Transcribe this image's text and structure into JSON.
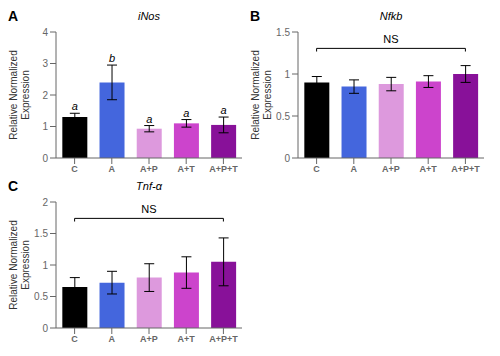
{
  "chart_data": [
    {
      "type": "bar",
      "title": "iNos",
      "categories": [
        "C",
        "A",
        "A+P",
        "A+T",
        "A+P+T"
      ],
      "values": [
        1.3,
        2.4,
        0.93,
        1.1,
        1.05
      ],
      "errors": [
        0.12,
        0.55,
        0.1,
        0.12,
        0.25
      ],
      "colors": [
        "#000000",
        "#4466dd",
        "#dd99dd",
        "#cc44cc",
        "#881199"
      ],
      "ylim": [
        0,
        4
      ],
      "yticks": [
        0,
        1,
        2,
        3,
        4
      ],
      "ylabel": "Relative Normalized\nExpression",
      "annotations": [
        {
          "text": "A"
        },
        {
          "text": "a",
          "category": "C"
        },
        {
          "text": "b",
          "category": "A"
        },
        {
          "text": "a",
          "category": "A+P"
        },
        {
          "text": "a",
          "category": "A+T"
        },
        {
          "text": "a",
          "category": "A+P+T"
        }
      ]
    },
    {
      "type": "bar",
      "title": "Nfkb",
      "categories": [
        "C",
        "A",
        "A+P",
        "A+T",
        "A+P+T"
      ],
      "values": [
        0.9,
        0.85,
        0.88,
        0.91,
        1.0
      ],
      "errors": [
        0.07,
        0.08,
        0.08,
        0.07,
        0.1
      ],
      "colors": [
        "#000000",
        "#4466dd",
        "#dd99dd",
        "#cc44cc",
        "#881199"
      ],
      "ylim": [
        0,
        1.5
      ],
      "yticks": [
        0,
        0.5,
        1,
        1.5
      ],
      "ylabel": "Relative Normalized\nExpression",
      "annotations": [
        {
          "text": "B"
        },
        {
          "text": "NS",
          "from": "C",
          "to": "A+P+T"
        }
      ]
    },
    {
      "type": "bar",
      "title": "Tnf-α",
      "categories": [
        "C",
        "A",
        "A+P",
        "A+T",
        "A+P+T"
      ],
      "values": [
        0.65,
        0.72,
        0.8,
        0.88,
        1.05
      ],
      "errors": [
        0.15,
        0.18,
        0.22,
        0.25,
        0.38
      ],
      "colors": [
        "#000000",
        "#4466dd",
        "#dd99dd",
        "#cc44cc",
        "#881199"
      ],
      "ylim": [
        0,
        2.0
      ],
      "yticks": [
        0,
        0.5,
        1,
        1.5,
        2
      ],
      "ylabel": "Relative Normalized\nExpression",
      "annotations": [
        {
          "text": "C"
        },
        {
          "text": "NS",
          "from": "C",
          "to": "A+P+T"
        }
      ]
    }
  ]
}
